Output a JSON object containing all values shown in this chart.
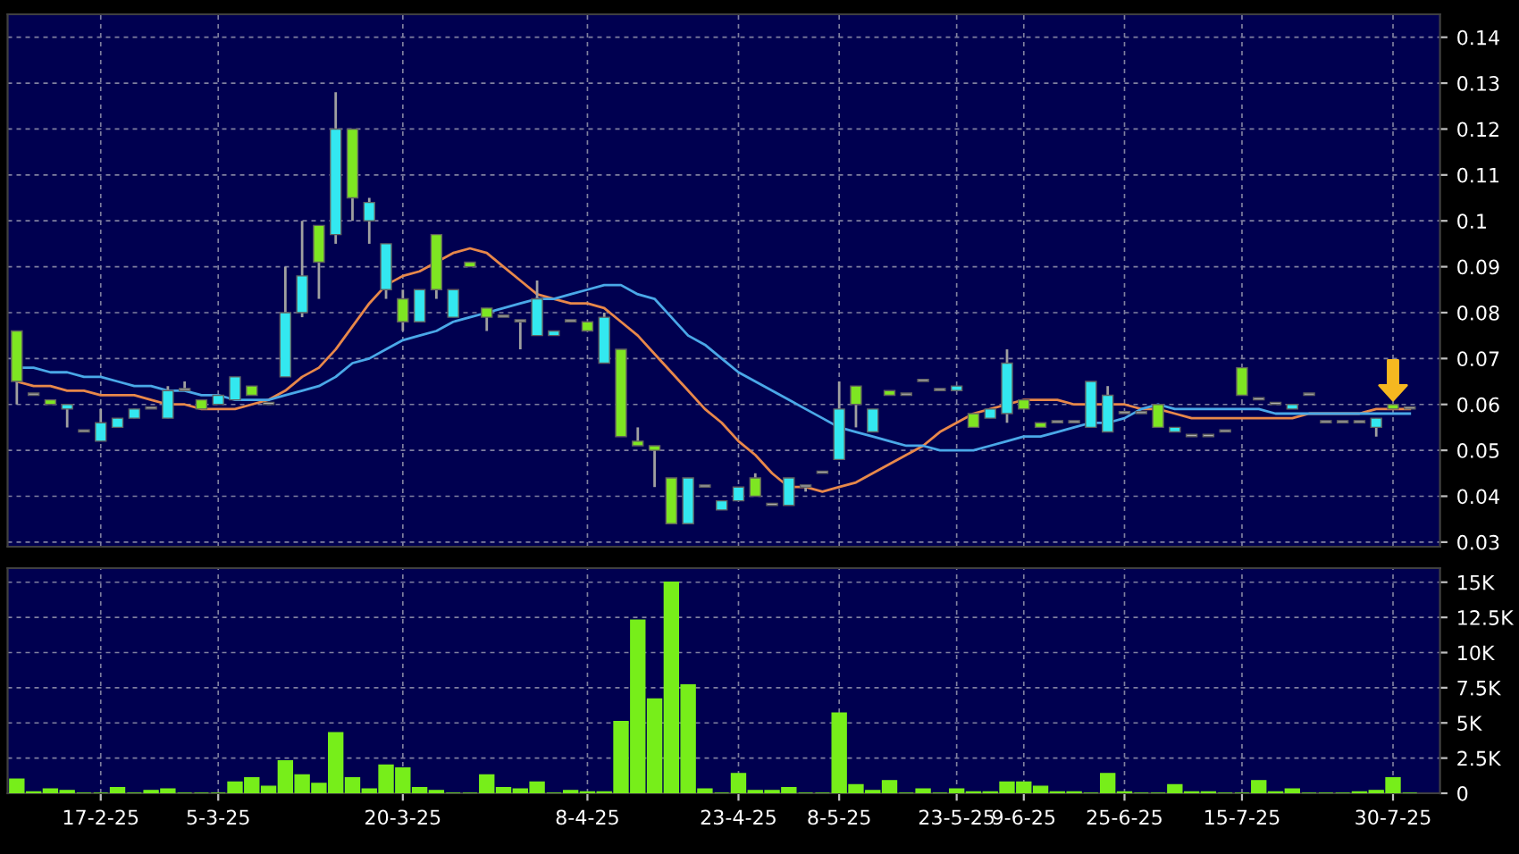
{
  "chart_data": [
    {
      "type": "candlestick",
      "tick_labels": "y",
      "grid": true,
      "categories": [
        null,
        null,
        null,
        null,
        null,
        null,
        null,
        null,
        null,
        null,
        null,
        null,
        null,
        null,
        null,
        null,
        null,
        null,
        null,
        null,
        null,
        null,
        null,
        null,
        null,
        null,
        null,
        null,
        null,
        null,
        null,
        null,
        null,
        null,
        null,
        null,
        null,
        null,
        null,
        null,
        null,
        null,
        null,
        null,
        null,
        null,
        null,
        null,
        null,
        null,
        null,
        null,
        null,
        null,
        null,
        null,
        null,
        null,
        null,
        null,
        null,
        null,
        null,
        null,
        null,
        null,
        null,
        null,
        null,
        null,
        null,
        null,
        null,
        null,
        null,
        null,
        null,
        null,
        null,
        null,
        null,
        null,
        null,
        null
      ],
      "ohlc": [
        [
          0.076,
          0.076,
          0.06,
          0.065
        ],
        [
          0.062,
          0.062,
          0.062,
          0.062
        ],
        [
          0.061,
          0.061,
          0.06,
          0.06
        ],
        [
          0.059,
          0.06,
          0.055,
          0.06
        ],
        [
          0.054,
          0.054,
          0.054,
          0.054
        ],
        [
          0.052,
          0.059,
          0.052,
          0.056
        ],
        [
          0.055,
          0.057,
          0.055,
          0.057
        ],
        [
          0.057,
          0.059,
          0.057,
          0.059
        ],
        [
          0.059,
          0.059,
          0.059,
          0.059
        ],
        [
          0.057,
          0.064,
          0.057,
          0.063
        ],
        [
          0.063,
          0.065,
          0.063,
          0.063
        ],
        [
          0.061,
          0.061,
          0.059,
          0.059
        ],
        [
          0.06,
          0.062,
          0.06,
          0.062
        ],
        [
          0.061,
          0.066,
          0.061,
          0.066
        ],
        [
          0.064,
          0.064,
          0.062,
          0.062
        ],
        [
          0.06,
          0.06,
          0.06,
          0.06
        ],
        [
          0.066,
          0.09,
          0.066,
          0.08
        ],
        [
          0.08,
          0.1,
          0.079,
          0.088
        ],
        [
          0.099,
          0.099,
          0.083,
          0.091
        ],
        [
          0.097,
          0.128,
          0.095,
          0.12
        ],
        [
          0.12,
          0.12,
          0.1,
          0.105
        ],
        [
          0.1,
          0.105,
          0.095,
          0.104
        ],
        [
          0.085,
          0.095,
          0.083,
          0.095
        ],
        [
          0.083,
          0.085,
          0.076,
          0.078
        ],
        [
          0.078,
          0.085,
          0.078,
          0.085
        ],
        [
          0.097,
          0.097,
          0.083,
          0.085
        ],
        [
          0.079,
          0.085,
          0.079,
          0.085
        ],
        [
          0.091,
          0.091,
          0.09,
          0.09
        ],
        [
          0.081,
          0.081,
          0.076,
          0.079
        ],
        [
          0.079,
          0.079,
          0.079,
          0.079
        ],
        [
          0.078,
          0.078,
          0.072,
          0.078
        ],
        [
          0.075,
          0.087,
          0.075,
          0.083
        ],
        [
          0.075,
          0.076,
          0.075,
          0.076
        ],
        [
          0.078,
          0.078,
          0.078,
          0.078
        ],
        [
          0.078,
          0.078,
          0.076,
          0.076
        ],
        [
          0.069,
          0.08,
          0.069,
          0.079
        ],
        [
          0.072,
          0.072,
          0.053,
          0.053
        ],
        [
          0.052,
          0.055,
          0.051,
          0.051
        ],
        [
          0.051,
          0.051,
          0.042,
          0.05
        ],
        [
          0.044,
          0.044,
          0.034,
          0.034
        ],
        [
          0.034,
          0.044,
          0.034,
          0.044
        ],
        [
          0.042,
          0.042,
          0.042,
          0.042
        ],
        [
          0.037,
          0.039,
          0.037,
          0.039
        ],
        [
          0.039,
          0.042,
          0.039,
          0.042
        ],
        [
          0.044,
          0.045,
          0.04,
          0.04
        ],
        [
          0.038,
          0.038,
          0.038,
          0.038
        ],
        [
          0.038,
          0.044,
          0.038,
          0.044
        ],
        [
          0.042,
          0.042,
          0.041,
          0.042
        ],
        [
          0.045,
          0.045,
          0.045,
          0.045
        ],
        [
          0.048,
          0.065,
          0.048,
          0.059
        ],
        [
          0.064,
          0.064,
          0.055,
          0.06
        ],
        [
          0.054,
          0.059,
          0.054,
          0.059
        ],
        [
          0.063,
          0.063,
          0.062,
          0.062
        ],
        [
          0.062,
          0.062,
          0.062,
          0.062
        ],
        [
          0.065,
          0.065,
          0.065,
          0.065
        ],
        [
          0.063,
          0.063,
          0.063,
          0.063
        ],
        [
          0.063,
          0.064,
          0.063,
          0.064
        ],
        [
          0.058,
          0.058,
          0.055,
          0.055
        ],
        [
          0.057,
          0.059,
          0.057,
          0.059
        ],
        [
          0.058,
          0.072,
          0.056,
          0.069
        ],
        [
          0.061,
          0.061,
          0.059,
          0.059
        ],
        [
          0.056,
          0.056,
          0.055,
          0.055
        ],
        [
          0.056,
          0.056,
          0.056,
          0.056
        ],
        [
          0.056,
          0.056,
          0.056,
          0.056
        ],
        [
          0.055,
          0.065,
          0.055,
          0.065
        ],
        [
          0.054,
          0.064,
          0.054,
          0.062
        ],
        [
          0.058,
          0.058,
          0.058,
          0.058
        ],
        [
          0.058,
          0.058,
          0.058,
          0.058
        ],
        [
          0.06,
          0.06,
          0.055,
          0.055
        ],
        [
          0.054,
          0.055,
          0.054,
          0.055
        ],
        [
          0.053,
          0.053,
          0.053,
          0.053
        ],
        [
          0.053,
          0.053,
          0.053,
          0.053
        ],
        [
          0.054,
          0.054,
          0.054,
          0.054
        ],
        [
          0.068,
          0.068,
          0.062,
          0.062
        ],
        [
          0.061,
          0.061,
          0.061,
          0.061
        ],
        [
          0.06,
          0.06,
          0.06,
          0.06
        ],
        [
          0.059,
          0.06,
          0.059,
          0.06
        ],
        [
          0.062,
          0.062,
          0.062,
          0.062
        ],
        [
          0.056,
          0.056,
          0.056,
          0.056
        ],
        [
          0.056,
          0.056,
          0.056,
          0.056
        ],
        [
          0.056,
          0.056,
          0.056,
          0.056
        ],
        [
          0.055,
          0.057,
          0.053,
          0.057
        ],
        [
          0.06,
          0.06,
          0.059,
          0.059
        ],
        [
          0.059,
          0.059,
          0.059,
          0.059
        ]
      ],
      "colors": [
        "#7ee622",
        "#b0b0b0",
        "#7ee622",
        "#33e8f0",
        "#b0b0b0",
        "#33e8f0",
        "#33e8f0",
        "#33e8f0",
        "#b0b0b0",
        "#33e8f0",
        "#b0b0b0",
        "#7ee622",
        "#33e8f0",
        "#33e8f0",
        "#7ee622",
        "#b0b0b0",
        "#33e8f0",
        "#33e8f0",
        "#7ee622",
        "#33e8f0",
        "#7ee622",
        "#33e8f0",
        "#33e8f0",
        "#7ee622",
        "#33e8f0",
        "#7ee622",
        "#33e8f0",
        "#7ee622",
        "#7ee622",
        "#b0b0b0",
        "#b0b0b0",
        "#33e8f0",
        "#33e8f0",
        "#b0b0b0",
        "#7ee622",
        "#33e8f0",
        "#7ee622",
        "#7ee622",
        "#7ee622",
        "#7ee622",
        "#33e8f0",
        "#b0b0b0",
        "#33e8f0",
        "#33e8f0",
        "#7ee622",
        "#b0b0b0",
        "#33e8f0",
        "#b0b0b0",
        "#b0b0b0",
        "#33e8f0",
        "#7ee622",
        "#33e8f0",
        "#7ee622",
        "#b0b0b0",
        "#b0b0b0",
        "#b0b0b0",
        "#33e8f0",
        "#7ee622",
        "#33e8f0",
        "#33e8f0",
        "#7ee622",
        "#7ee622",
        "#b0b0b0",
        "#b0b0b0",
        "#33e8f0",
        "#33e8f0",
        "#b0b0b0",
        "#b0b0b0",
        "#7ee622",
        "#33e8f0",
        "#b0b0b0",
        "#b0b0b0",
        "#b0b0b0",
        "#7ee622",
        "#b0b0b0",
        "#b0b0b0",
        "#33e8f0",
        "#b0b0b0",
        "#b0b0b0",
        "#b0b0b0",
        "#b0b0b0",
        "#33e8f0",
        "#7ee622",
        "#b0b0b0"
      ],
      "series": [
        {
          "type": "line",
          "color": "#e8884a",
          "values": [
            0.065,
            0.064,
            0.064,
            0.063,
            0.063,
            0.062,
            0.062,
            0.062,
            0.061,
            0.06,
            0.06,
            0.059,
            0.059,
            0.059,
            0.06,
            0.061,
            0.063,
            0.066,
            0.068,
            0.072,
            0.077,
            0.082,
            0.086,
            0.088,
            0.089,
            0.091,
            0.093,
            0.094,
            0.093,
            0.09,
            0.087,
            0.084,
            0.083,
            0.082,
            0.082,
            0.081,
            0.078,
            0.075,
            0.071,
            0.067,
            0.063,
            0.059,
            0.056,
            0.052,
            0.049,
            0.045,
            0.042,
            0.042,
            0.041,
            0.042,
            0.043,
            0.045,
            0.047,
            0.049,
            0.051,
            0.054,
            0.056,
            0.058,
            0.059,
            0.06,
            0.061,
            0.061,
            0.061,
            0.06,
            0.06,
            0.06,
            0.06,
            0.059,
            0.059,
            0.058,
            0.057,
            0.057,
            0.057,
            0.057,
            0.057,
            0.057,
            0.057,
            0.058,
            0.058,
            0.058,
            0.058,
            0.059,
            0.059,
            0.059
          ]
        },
        {
          "type": "line",
          "color": "#4aa8e8",
          "values": [
            0.068,
            0.068,
            0.067,
            0.067,
            0.066,
            0.066,
            0.065,
            0.064,
            0.064,
            0.063,
            0.063,
            0.062,
            0.062,
            0.061,
            0.061,
            0.061,
            0.062,
            0.063,
            0.064,
            0.066,
            0.069,
            0.07,
            0.072,
            0.074,
            0.075,
            0.076,
            0.078,
            0.079,
            0.08,
            0.081,
            0.082,
            0.083,
            0.083,
            0.084,
            0.085,
            0.086,
            0.086,
            0.084,
            0.083,
            0.079,
            0.075,
            0.073,
            0.07,
            0.067,
            0.065,
            0.063,
            0.061,
            0.059,
            0.057,
            0.055,
            0.054,
            0.053,
            0.052,
            0.051,
            0.051,
            0.05,
            0.05,
            0.05,
            0.051,
            0.052,
            0.053,
            0.053,
            0.054,
            0.055,
            0.056,
            0.056,
            0.057,
            0.059,
            0.06,
            0.059,
            0.059,
            0.059,
            0.059,
            0.059,
            0.059,
            0.058,
            0.058,
            0.058,
            0.058,
            0.058,
            0.058,
            0.058,
            0.058,
            0.058
          ]
        }
      ],
      "ylim": [
        0.029,
        0.145
      ],
      "yticks": [
        0.03,
        0.04,
        0.05,
        0.06,
        0.07,
        0.08,
        0.09,
        0.1,
        0.11,
        0.12,
        0.13,
        0.14
      ]
    },
    {
      "type": "bar",
      "grid": true,
      "color": "#77ee1a",
      "categories": [
        null,
        null,
        null,
        null,
        null,
        "17-2-25",
        null,
        null,
        null,
        null,
        null,
        null,
        "5-3-25",
        null,
        null,
        null,
        null,
        null,
        null,
        null,
        null,
        null,
        null,
        "20-3-25",
        null,
        null,
        null,
        null,
        null,
        null,
        null,
        null,
        null,
        null,
        "8-4-25",
        null,
        null,
        null,
        null,
        null,
        null,
        null,
        null,
        "23-4-25",
        null,
        null,
        null,
        null,
        null,
        "8-5-25",
        null,
        null,
        null,
        null,
        null,
        null,
        "23-5-25",
        null,
        null,
        null,
        "9-6-25",
        null,
        null,
        null,
        null,
        null,
        "25-6-25",
        null,
        null,
        null,
        null,
        null,
        null,
        "15-7-25",
        null,
        null,
        null,
        null,
        null,
        null,
        null,
        null,
        "30-7-25",
        null
      ],
      "values": [
        1.0,
        0.1,
        0.3,
        0.2,
        0,
        0,
        0.4,
        0,
        0.2,
        0.3,
        0,
        0,
        0,
        0.8,
        1.1,
        0.5,
        2.3,
        1.3,
        0.7,
        4.3,
        1.1,
        0.3,
        2.0,
        1.8,
        0.4,
        0.2,
        0,
        0,
        1.3,
        0.4,
        0.3,
        0.8,
        0,
        0.2,
        0.1,
        0.1,
        5.1,
        12.3,
        6.7,
        15.0,
        7.7,
        0.3,
        0,
        1.4,
        0.2,
        0.2,
        0.4,
        0,
        0,
        5.7,
        0.6,
        0.2,
        0.9,
        0,
        0.3,
        0,
        0.3,
        0.1,
        0.1,
        0.8,
        0.8,
        0.5,
        0.1,
        0.1,
        0,
        1.4,
        0.1,
        0,
        0,
        0.6,
        0.1,
        0.1,
        0,
        0,
        0.9,
        0.1,
        0.3,
        0,
        0,
        0,
        0.1,
        0.2,
        1.1,
        0
      ],
      "ylim": [
        0,
        16
      ],
      "yticks": [
        0,
        {
          "value": 2.5,
          "label": "2.5K"
        },
        {
          "value": 5,
          "label": "5K"
        },
        {
          "value": 7.5,
          "label": "7.5K"
        },
        {
          "value": 10,
          "label": "10K"
        },
        {
          "value": 12.5,
          "label": "12.5K"
        },
        {
          "value": 15,
          "label": "15K"
        }
      ]
    }
  ]
}
